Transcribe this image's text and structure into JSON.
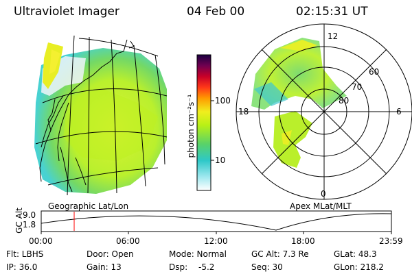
{
  "header": {
    "instrument": "Ultraviolet Imager",
    "date": "04 Feb 00",
    "time": "02:15:31 UT"
  },
  "geo_panel": {
    "label": "Geographic Lat/Lon"
  },
  "colorbar": {
    "unit_label": "photon cm⁻²s⁻¹",
    "ticks": [
      "100",
      "10"
    ],
    "scale": "log"
  },
  "polar_panel": {
    "label": "Apex MLat/MLT",
    "mlt_labels": {
      "top": "12",
      "left": "18",
      "right": "6",
      "bottom": "0"
    },
    "lat_labels": [
      "60",
      "70",
      "80"
    ]
  },
  "altitude_plot": {
    "ylabel": "GC Alt",
    "yticks": [
      "9.0",
      "1.8"
    ],
    "xticks": [
      "00:00",
      "06:00",
      "12:00",
      "18:00",
      "23:59"
    ],
    "marker_time": "02:15:31",
    "marker_color": "#ff0000"
  },
  "status": {
    "flt": "Flt: LBHS",
    "ip": "IP: 36.0",
    "door": "Door: Open",
    "gain": "Gain: 13",
    "mode": "Mode: Normal",
    "dsp_label": "Dsp:",
    "dsp_value": "-5.2",
    "gc_alt": "GC Alt: 7.3 Re",
    "seq": "Seq: 30",
    "glat": "GLat:  48.3",
    "glon": "GLon: 218.2"
  },
  "palette": {
    "colorbar_stops": [
      "#ffffff",
      "#9fe8ef",
      "#2ec8c8",
      "#58d26a",
      "#b8f016",
      "#f0ee1e",
      "#ff9a00",
      "#ff3818",
      "#c80028",
      "#700050",
      "#1a0040"
    ]
  }
}
